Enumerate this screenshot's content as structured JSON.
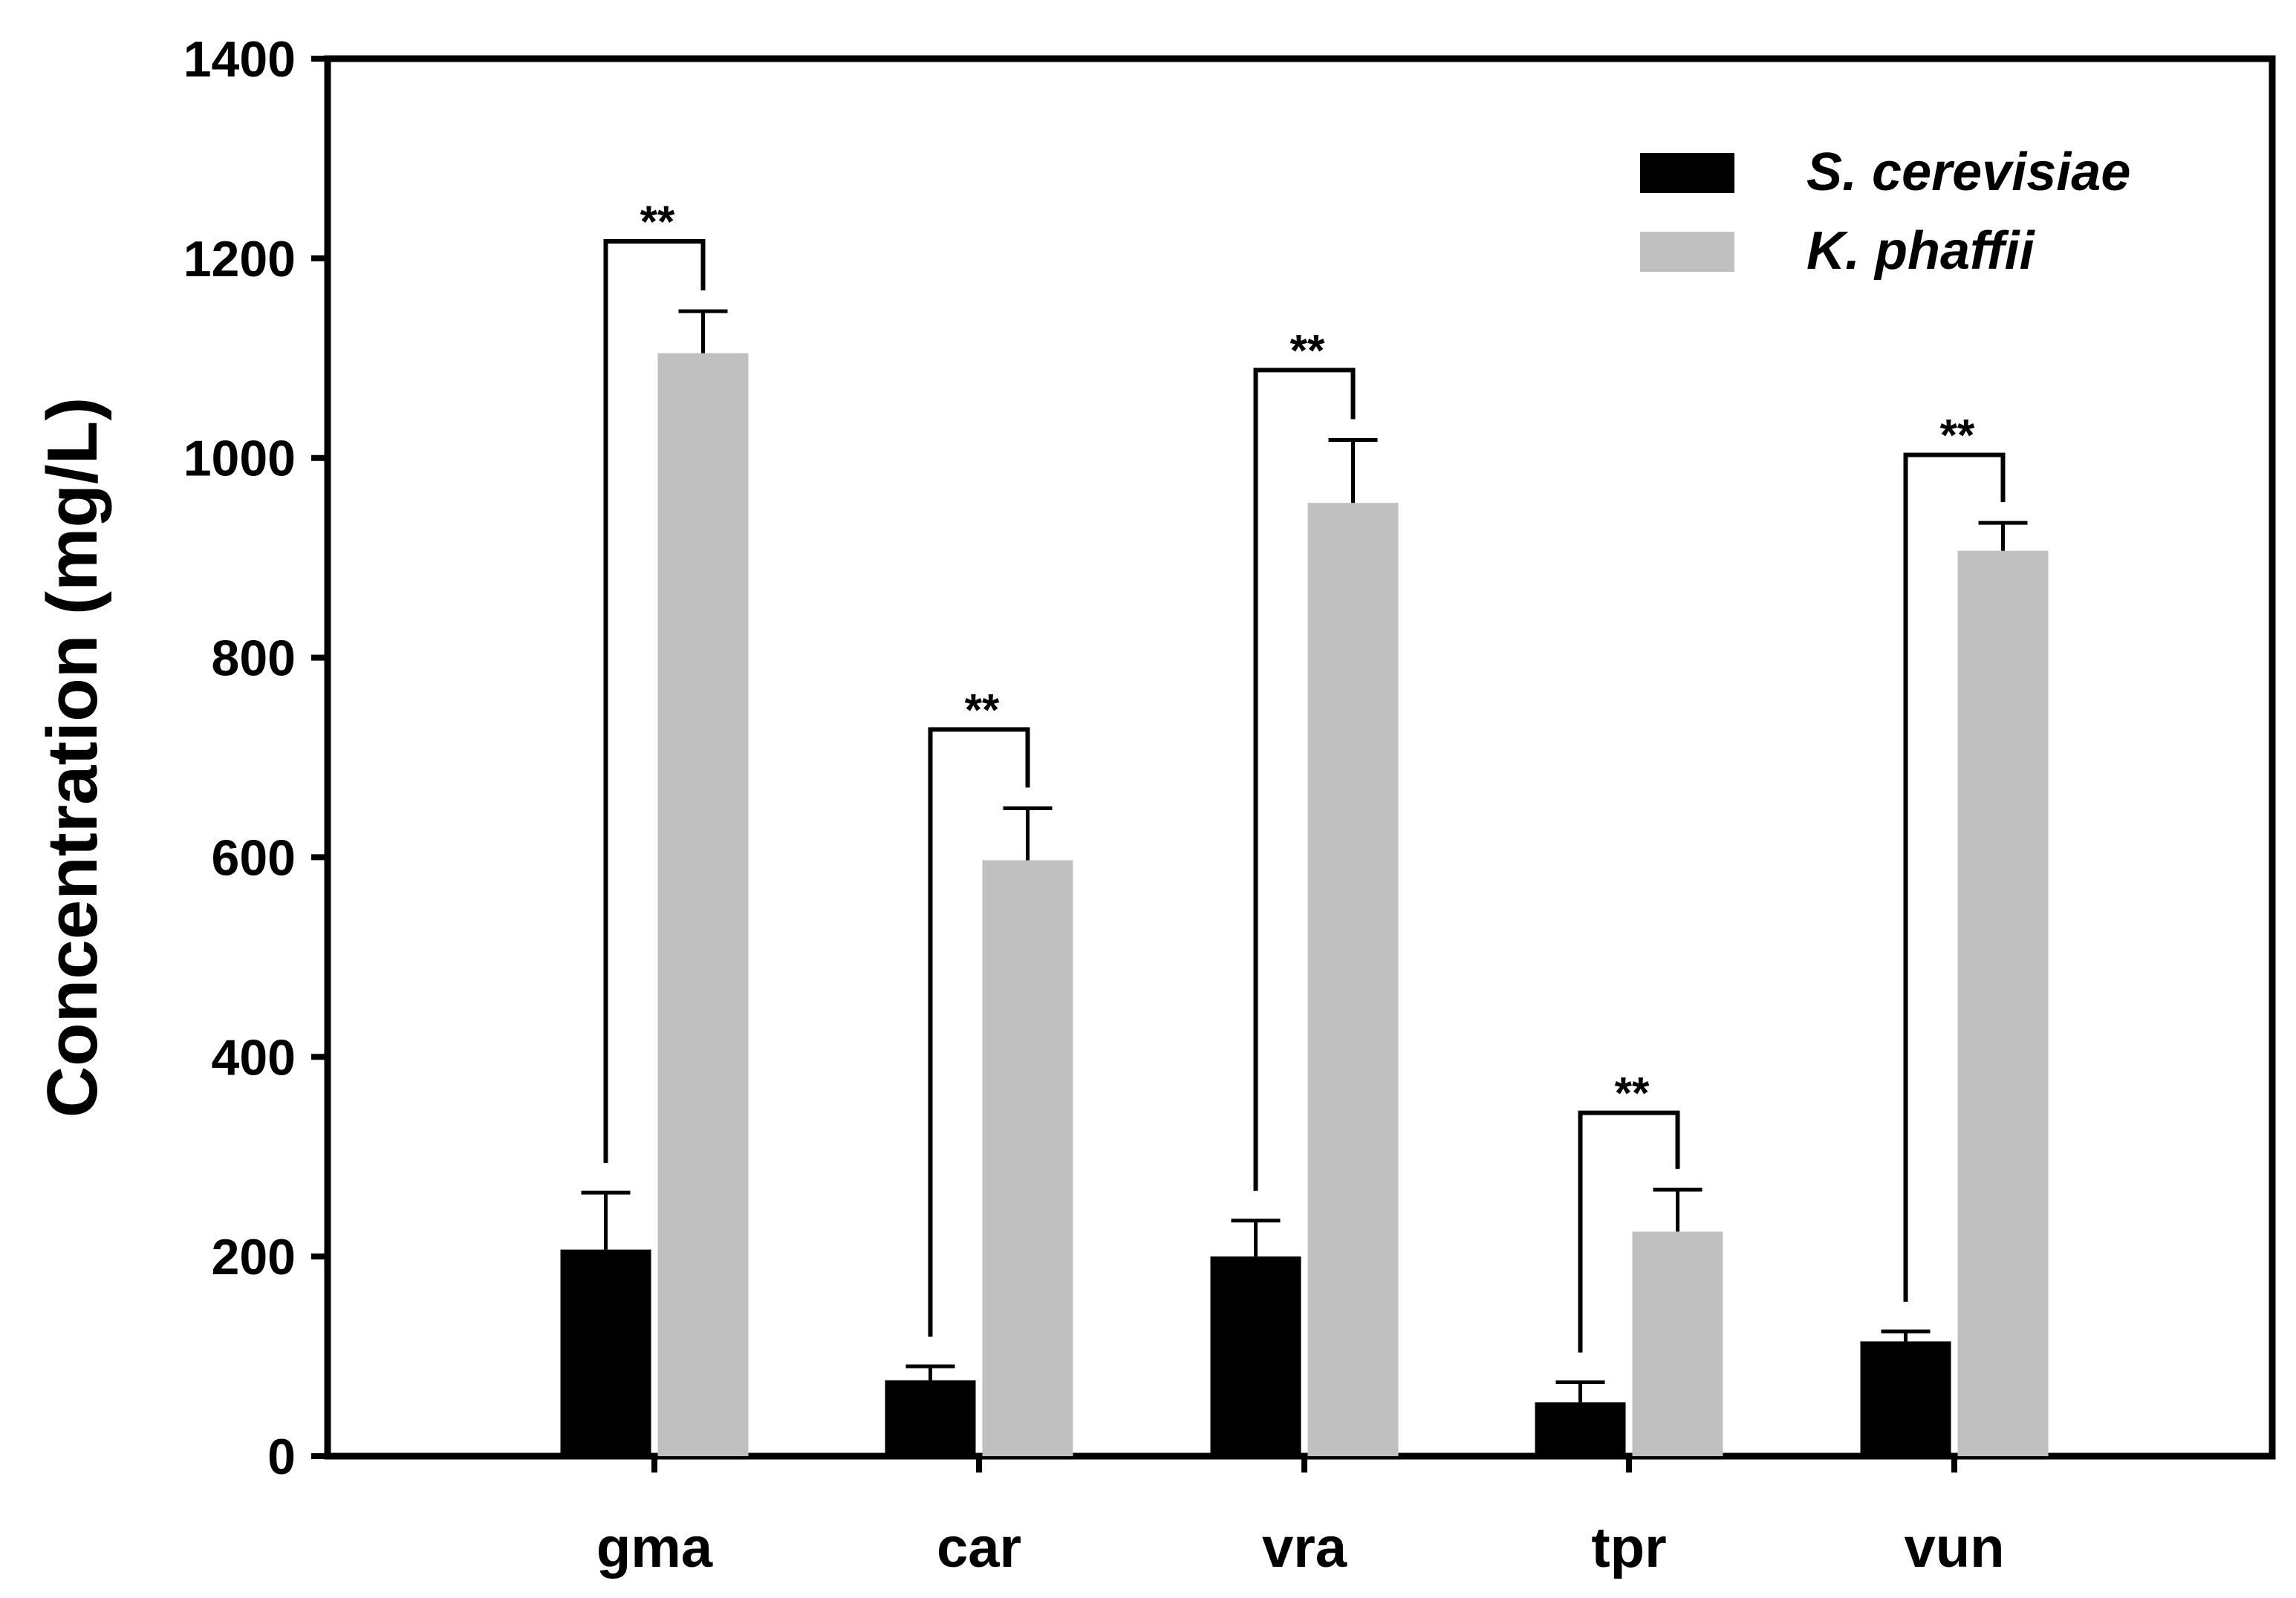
{
  "chart_data": {
    "type": "bar",
    "title": "",
    "xlabel": "",
    "ylabel": "Concentration (mg/L)",
    "ylim": [
      0,
      1400
    ],
    "yticks": [
      0,
      200,
      400,
      600,
      800,
      1000,
      1200,
      1400
    ],
    "categories": [
      "gma",
      "car",
      "vra",
      "tpr",
      "vun"
    ],
    "series": [
      {
        "name": "S. cerevisiae",
        "color": "#000000",
        "values": [
          207,
          76,
          200,
          54,
          115
        ],
        "errors": [
          57,
          14,
          36,
          20,
          10
        ]
      },
      {
        "name": "K. phaffii",
        "color": "#c0c0c0",
        "values": [
          1105,
          597,
          955,
          225,
          907
        ],
        "errors": [
          42,
          52,
          63,
          42,
          28
        ]
      }
    ],
    "significance": [
      {
        "category": "gma",
        "label": "**",
        "bracket_top": 1217
      },
      {
        "category": "car",
        "label": "**",
        "bracket_top": 728
      },
      {
        "category": "vra",
        "label": "**",
        "bracket_top": 1088
      },
      {
        "category": "tpr",
        "label": "**",
        "bracket_top": 344
      },
      {
        "category": "vun",
        "label": "**",
        "bracket_top": 1003
      }
    ],
    "legend_position": "top-right",
    "grid": false
  }
}
